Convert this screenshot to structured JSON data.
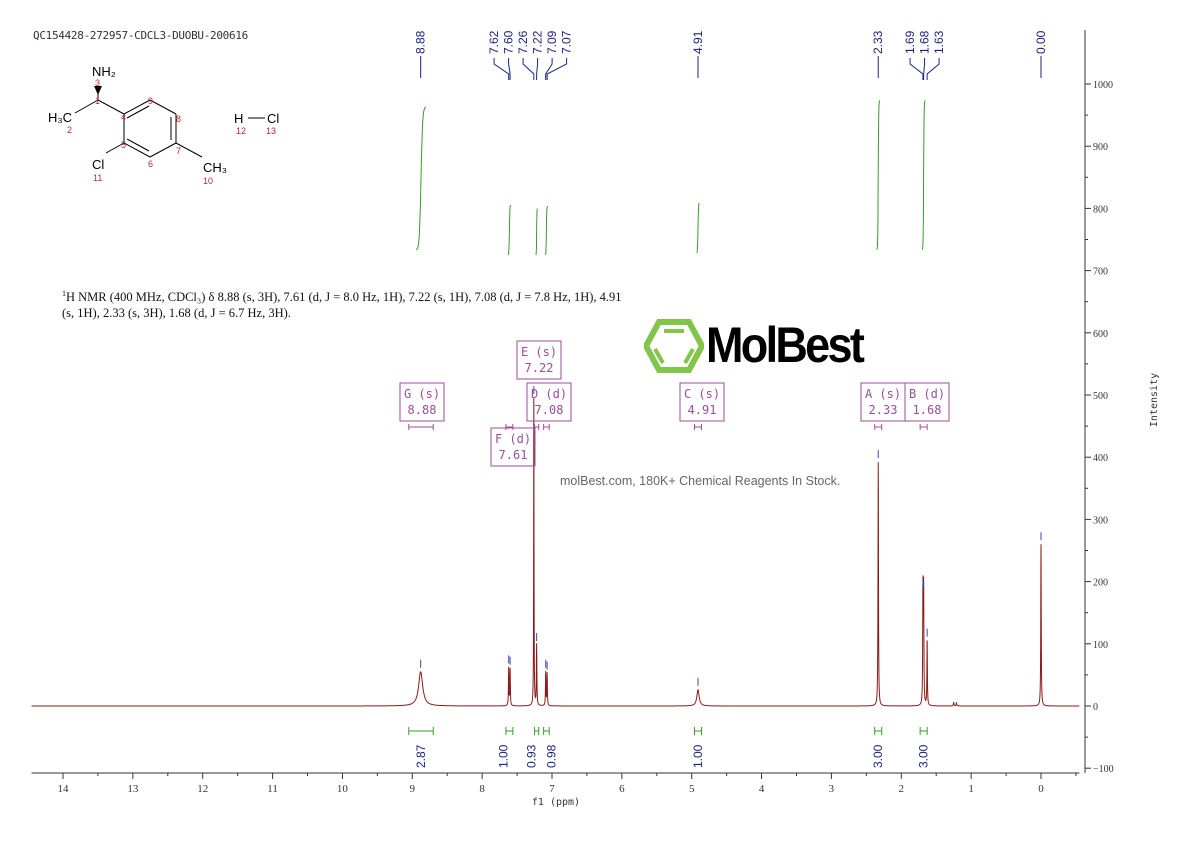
{
  "chart_data": {
    "type": "line",
    "title": "QC154428-272957-CDCL3-DUOBU-200616",
    "xlabel": "f1 (ppm)",
    "ylabel": "Intensity",
    "xlim": [
      14.45,
      -0.55
    ],
    "ylim": [
      -100,
      1090
    ],
    "x_ticks": [
      14,
      13,
      12,
      11,
      10,
      9,
      8,
      7,
      6,
      5,
      4,
      3,
      2,
      1,
      0
    ],
    "y_ticks": [
      -100,
      0,
      100,
      200,
      300,
      400,
      500,
      600,
      700,
      800,
      900,
      1000
    ],
    "grid": false,
    "colors": {
      "spectrum": "#8b1a1a",
      "integral": "#3a9a2a",
      "peak_label": "#1a237e",
      "multiplet": "#9b4d9b",
      "logo": "#7cc242"
    },
    "peaks": [
      {
        "ppm": 8.88,
        "height": 55,
        "width": 0.035
      },
      {
        "ppm": 7.62,
        "height": 62,
        "width": 0.004
      },
      {
        "ppm": 7.6,
        "height": 60,
        "width": 0.004
      },
      {
        "ppm": 7.26,
        "height": 495,
        "width": 0.003
      },
      {
        "ppm": 7.22,
        "height": 98,
        "width": 0.004
      },
      {
        "ppm": 7.09,
        "height": 55,
        "width": 0.004
      },
      {
        "ppm": 7.07,
        "height": 52,
        "width": 0.004
      },
      {
        "ppm": 4.91,
        "height": 26,
        "width": 0.02
      },
      {
        "ppm": 2.33,
        "height": 392,
        "width": 0.004
      },
      {
        "ppm": 1.69,
        "height": 185,
        "width": 0.004
      },
      {
        "ppm": 1.68,
        "height": 182,
        "width": 0.004
      },
      {
        "ppm": 1.63,
        "height": 105,
        "width": 0.004
      },
      {
        "ppm": 1.25,
        "height": 6,
        "width": 0.005
      },
      {
        "ppm": 1.21,
        "height": 5,
        "width": 0.005
      },
      {
        "ppm": 0.0,
        "height": 260,
        "width": 0.004
      }
    ],
    "peak_labels": [
      {
        "group": [
          "8.88"
        ]
      },
      {
        "group": [
          "7.62",
          "7.60",
          "7.26",
          "7.22",
          "7.09",
          "7.07"
        ]
      },
      {
        "group": [
          "4.91"
        ]
      },
      {
        "group": [
          "2.33"
        ]
      },
      {
        "group": [
          "1.69",
          "1.68",
          "1.63"
        ]
      },
      {
        "group": [
          "0.00"
        ]
      }
    ],
    "integrals": [
      {
        "from": 9.05,
        "to": 8.7,
        "value": "2.87"
      },
      {
        "from": 7.66,
        "to": 7.56,
        "value": "1.00"
      },
      {
        "from": 7.25,
        "to": 7.19,
        "value": "0.93"
      },
      {
        "from": 7.12,
        "to": 7.04,
        "value": "0.98"
      },
      {
        "from": 4.96,
        "to": 4.86,
        "value": "1.00"
      },
      {
        "from": 2.38,
        "to": 2.28,
        "value": "3.00"
      },
      {
        "from": 1.73,
        "to": 1.63,
        "value": "3.00"
      }
    ],
    "multiplets": [
      {
        "label": "G (s)",
        "shift": "8.88",
        "from": 9.05,
        "to": 8.7
      },
      {
        "label": "F (d)",
        "shift": "7.61",
        "from": 7.66,
        "to": 7.56
      },
      {
        "label": "E (s)",
        "shift": "7.22",
        "from": 7.25,
        "to": 7.19
      },
      {
        "label": "D (d)",
        "shift": "7.08",
        "from": 7.12,
        "to": 7.04
      },
      {
        "label": "C (s)",
        "shift": "4.91",
        "from": 4.96,
        "to": 4.86
      },
      {
        "label": "A (s)",
        "shift": "2.33",
        "from": 2.38,
        "to": 2.28
      },
      {
        "label": "B (d)",
        "shift": "1.68",
        "from": 1.73,
        "to": 1.63
      }
    ]
  },
  "description": {
    "sup": "1",
    "text": "H NMR (400 MHz, CDCl₃) δ 8.88 (s, 3H), 7.61 (d, J = 8.0 Hz, 1H), 7.22 (s, 1H), 7.08 (d, J = 7.8 Hz, 1H), 4.91 (s, 1H), 2.33 (s, 3H), 1.68 (d, J = 6.7 Hz, 3H)."
  },
  "structure": {
    "nh2": "NH₂",
    "h3c": "H₃C",
    "cl": "Cl",
    "ch3": "CH₃",
    "h": "H",
    "hcl_cl": "Cl",
    "numbers": [
      "1",
      "2",
      "3",
      "4",
      "5",
      "6",
      "7",
      "8",
      "9",
      "10",
      "11",
      "12",
      "13"
    ]
  },
  "watermark": {
    "brand": "MolBest",
    "tagline": "molBest.com, 180K+ Chemical Reagents In Stock."
  }
}
